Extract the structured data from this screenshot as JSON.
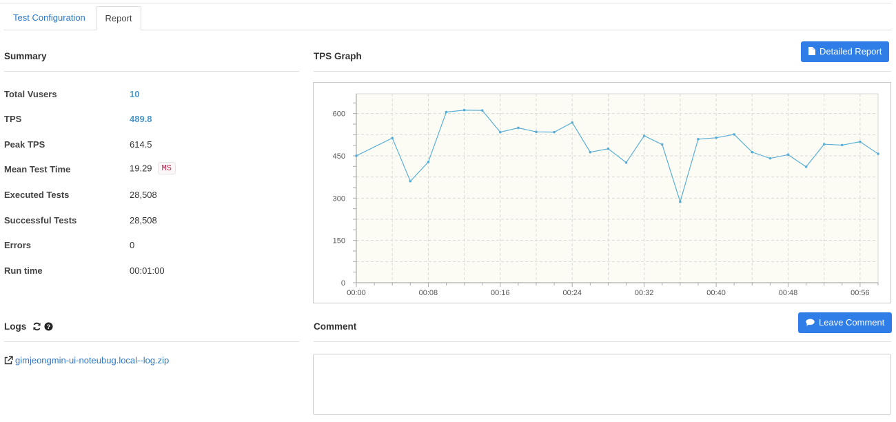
{
  "tabs": [
    {
      "label": "Test Configuration",
      "active": false
    },
    {
      "label": "Report",
      "active": true
    }
  ],
  "summary": {
    "title": "Summary",
    "rows": [
      {
        "label": "Total Vusers",
        "value": "10"
      },
      {
        "label": "TPS",
        "value": "489.8"
      },
      {
        "label": "Peak TPS",
        "value": "614.5"
      },
      {
        "label": "Mean Test Time",
        "value": "19.29",
        "unit": "MS"
      },
      {
        "label": "Executed Tests",
        "value": "28,508"
      },
      {
        "label": "Successful Tests",
        "value": "28,508"
      },
      {
        "label": "Errors",
        "value": "0"
      },
      {
        "label": "Run time",
        "value": "00:01:00"
      }
    ]
  },
  "graph": {
    "title": "TPS Graph",
    "detailed_report_label": "Detailed Report"
  },
  "logs": {
    "title": "Logs",
    "file_link": "gimjeongmin-ui-noteubug.local--log.zip",
    "refresh_icon": "refresh-icon",
    "help_icon": "question-circle-icon"
  },
  "comment": {
    "title": "Comment",
    "leave_comment_label": "Leave Comment"
  },
  "colors": {
    "accent": "#2f7ee8",
    "link": "#2a77c9",
    "value_link": "#4a98c9",
    "series": "#5aaed6",
    "plot_bg": "#fcfcf4"
  },
  "chart_data": {
    "type": "line",
    "title": "",
    "xlabel": "",
    "ylabel": "",
    "x_ticks": [
      "00:00",
      "00:08",
      "00:16",
      "00:24",
      "00:32",
      "00:40",
      "00:48",
      "00:56"
    ],
    "y_ticks": [
      0,
      150,
      300,
      450,
      600
    ],
    "ylim": [
      0,
      670
    ],
    "xlim_seconds": [
      0,
      58
    ],
    "grid": true,
    "series": [
      {
        "x": [
          0,
          4,
          6,
          8,
          10,
          12,
          14,
          16,
          18,
          20,
          22,
          24,
          26,
          28,
          30,
          32,
          34,
          36,
          38,
          40,
          42,
          44,
          46,
          48,
          50,
          52,
          54,
          56,
          58
        ],
        "values": [
          450,
          513,
          360,
          428,
          605,
          612,
          611,
          534,
          549,
          535,
          534,
          568,
          463,
          475,
          426,
          521,
          490,
          287,
          509,
          514,
          526,
          463,
          441,
          454,
          411,
          491,
          488,
          500,
          457
        ]
      }
    ]
  }
}
